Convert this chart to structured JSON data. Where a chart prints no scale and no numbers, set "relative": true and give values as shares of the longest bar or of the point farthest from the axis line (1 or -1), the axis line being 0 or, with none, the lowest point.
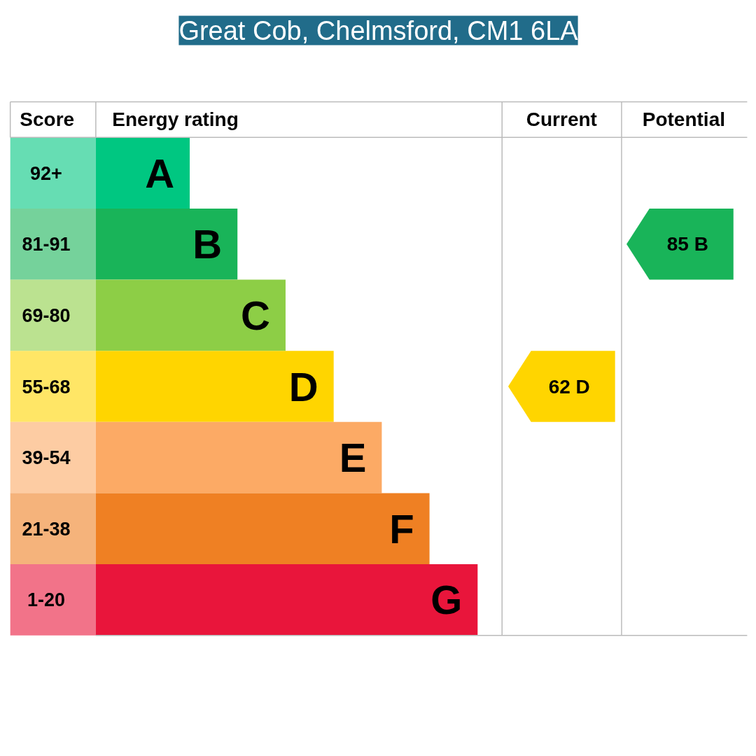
{
  "chart_data": {
    "type": "bar",
    "orientation": "horizontal",
    "relative": true,
    "title": "Great Cob, Chelmsford, CM1 6LA",
    "categories": [
      "A",
      "B",
      "C",
      "D",
      "E",
      "F",
      "G"
    ],
    "values": [
      0.246,
      0.371,
      0.497,
      0.623,
      0.749,
      0.874,
      1
    ],
    "colors": [
      "#00c781",
      "#19b459",
      "#8dce46",
      "#ffd500",
      "#fcaa65",
      "#ef8023",
      "#e9153b"
    ],
    "annotations": [
      "Score",
      "Energy rating",
      "Current",
      "Potential",
      "92+",
      "81-91",
      "69-80",
      "55-68",
      "39-54",
      "21-38",
      "1-20",
      "62 D",
      "85 B"
    ]
  }
}
